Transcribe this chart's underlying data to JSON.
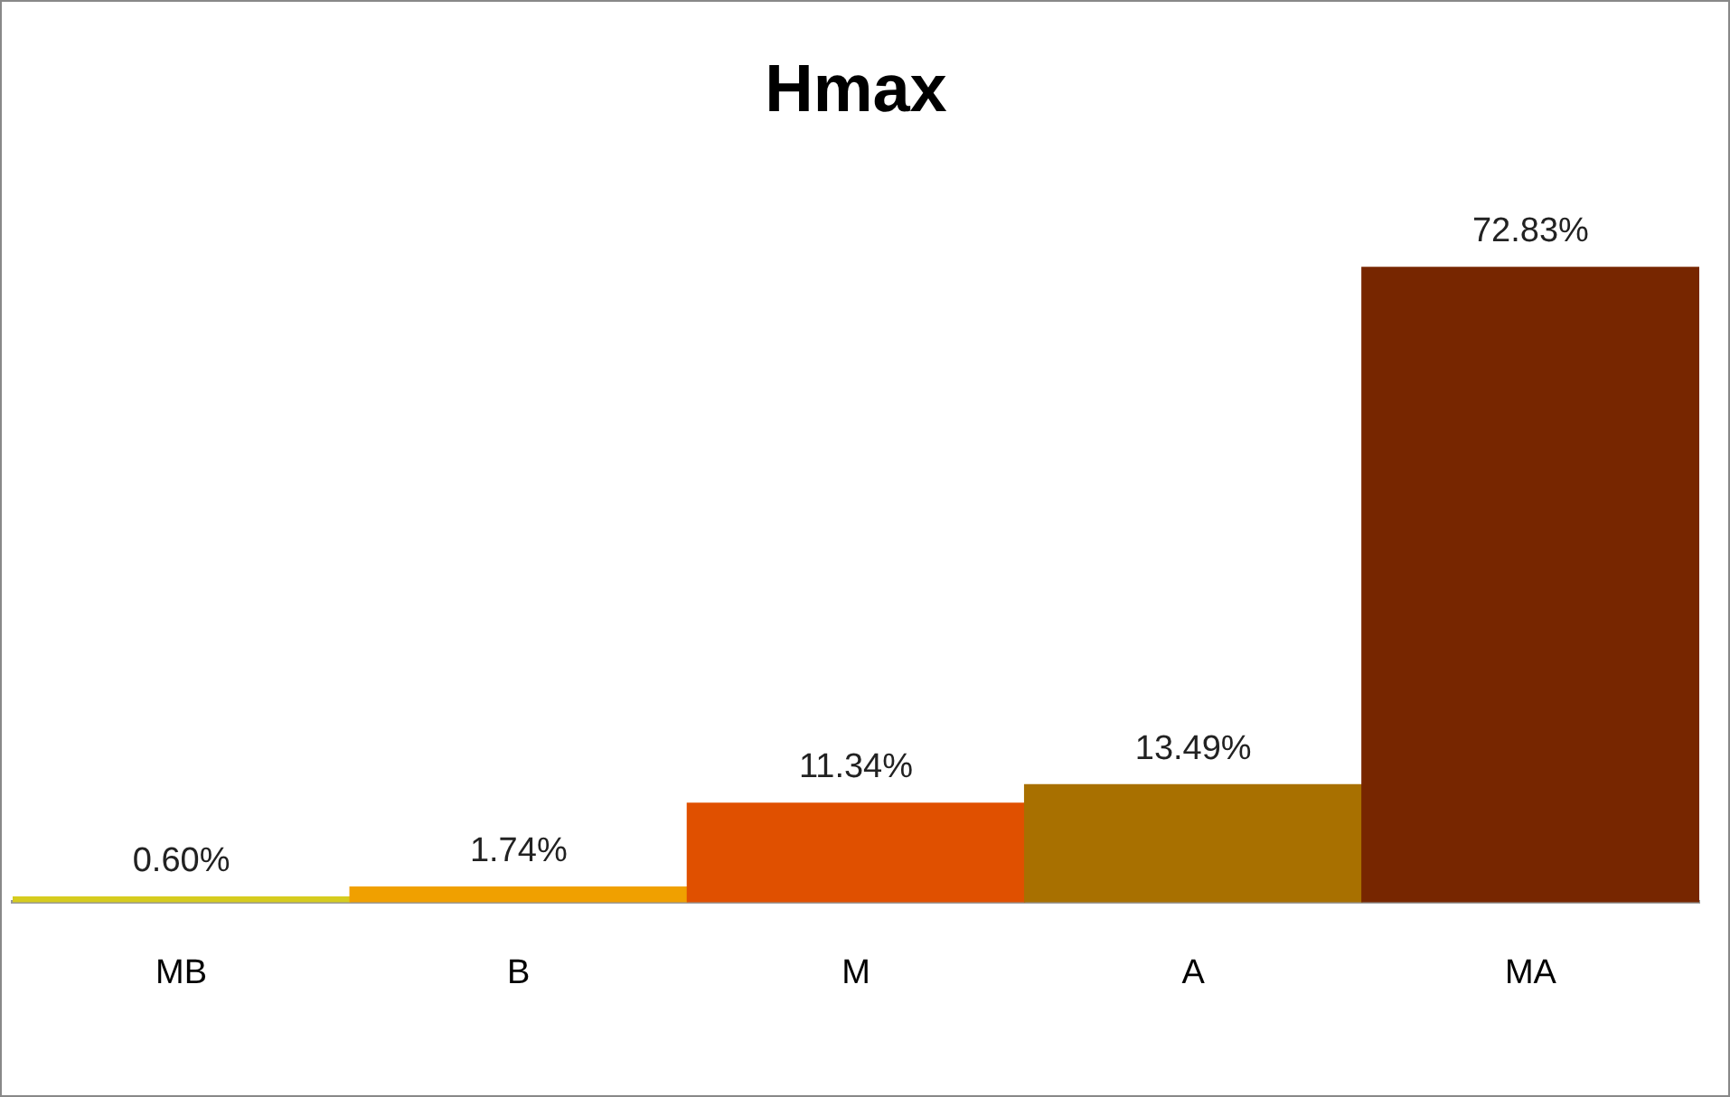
{
  "chart_data": {
    "type": "bar",
    "title": "Hmax",
    "categories": [
      "MB",
      "B",
      "M",
      "A",
      "MA"
    ],
    "values": [
      0.6,
      1.74,
      11.34,
      13.49,
      72.83
    ],
    "colors": [
      "#d6cc1e",
      "#f0a000",
      "#e05000",
      "#a87000",
      "#772600"
    ],
    "value_labels": [
      "0.60%",
      "1.74%",
      "11.34%",
      "13.49%",
      "72.83%"
    ],
    "grid": false,
    "legend": false
  }
}
